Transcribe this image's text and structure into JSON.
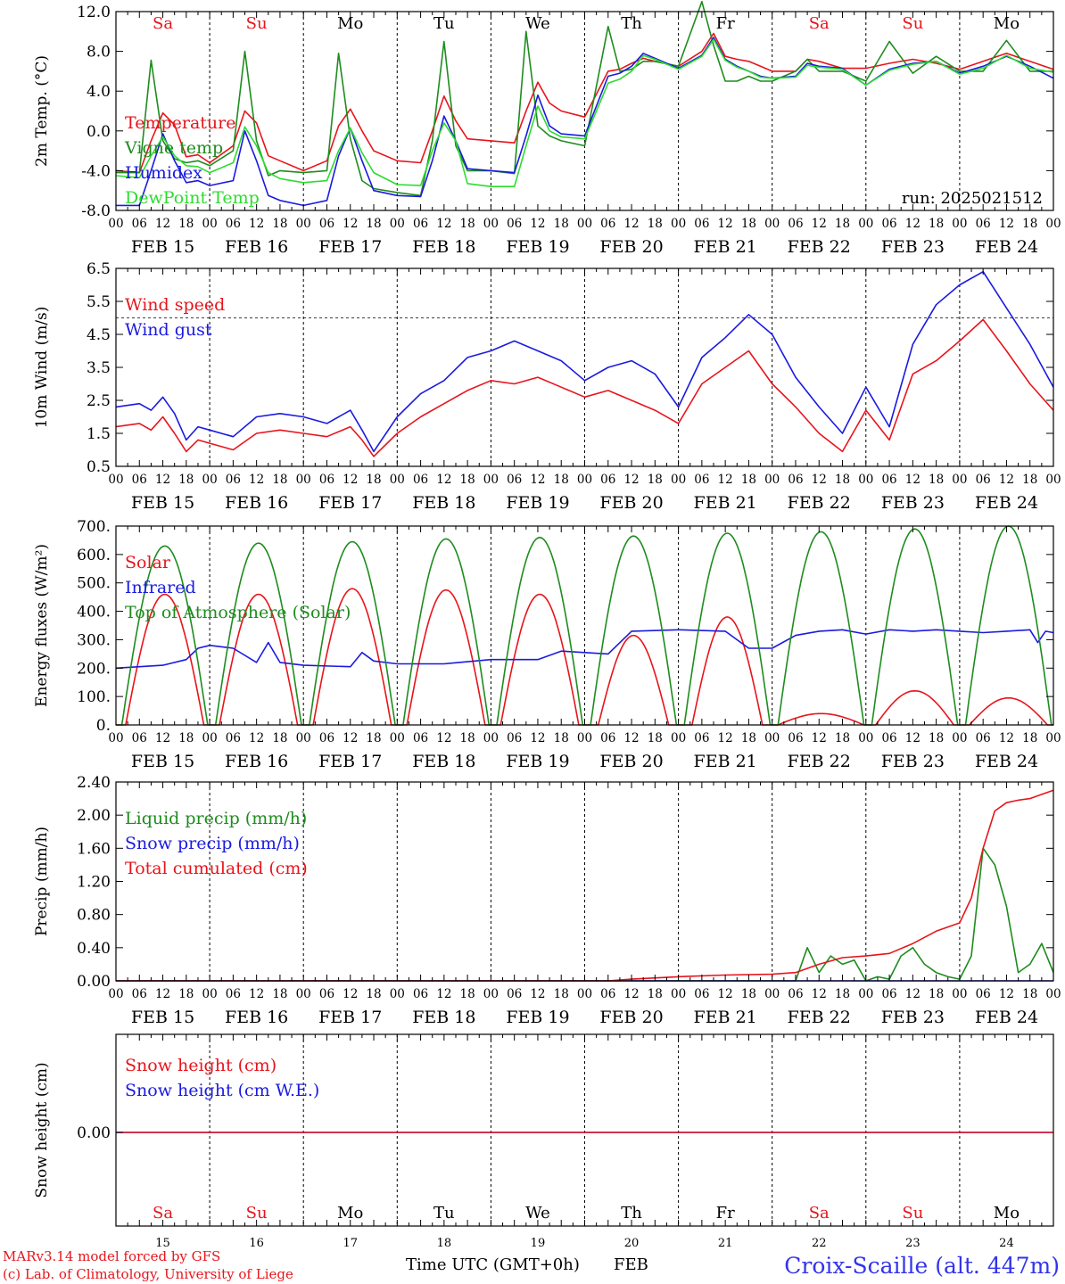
{
  "colors": {
    "red": "#e8141b",
    "darkgreen": "#1e8c1e",
    "blue": "#1a1ae0",
    "lightgreen": "#2edc2e",
    "black": "#000000",
    "siteblue": "#3333ee"
  },
  "time_axis": {
    "hour_ticks": [
      "00",
      "06",
      "12",
      "18"
    ],
    "days": [
      "15",
      "16",
      "17",
      "18",
      "19",
      "20",
      "21",
      "22",
      "23",
      "24"
    ],
    "month": "FEB",
    "day_labels": [
      "FEB 15",
      "FEB 16",
      "FEB 17",
      "FEB 18",
      "FEB 19",
      "FEB 20",
      "FEB 21",
      "FEB 22",
      "FEB 23",
      "FEB 24"
    ],
    "weekdays": [
      "Sa",
      "Su",
      "Mo",
      "Tu",
      "We",
      "Th",
      "Fr",
      "Sa",
      "Su",
      "Mo"
    ],
    "weekend_flags": [
      true,
      true,
      false,
      false,
      false,
      false,
      false,
      true,
      true,
      false
    ],
    "xlabel": "Time UTC (GMT+0h)"
  },
  "footer": {
    "model": "MARv3.14 model forced by GFS",
    "credit": "(c) Lab. of Climatology, University of Liege",
    "site": "Croix-Scaille (alt. 447m)"
  },
  "chart_data": [
    {
      "type": "line",
      "ylabel": "2m Temp. (°C)",
      "ylim": [
        -8,
        12
      ],
      "ytick_values": [
        -8,
        -4,
        0,
        4,
        8,
        12
      ],
      "yticks": [
        "-8.0",
        "-4.0",
        "0.0",
        "4.0",
        "8.0",
        "12.0"
      ],
      "annotation": "run: 2025021512",
      "x_hours": [
        0,
        6,
        9,
        12,
        15,
        18,
        21,
        24,
        30,
        33,
        36,
        39,
        42,
        48,
        54,
        57,
        60,
        63,
        66,
        72,
        78,
        81,
        84,
        87,
        90,
        96,
        102,
        105,
        108,
        111,
        114,
        120,
        126,
        129,
        132,
        135,
        138,
        144,
        150,
        153,
        156,
        159,
        162,
        165,
        168,
        174,
        177,
        180,
        186,
        192,
        198,
        204,
        210,
        216,
        222,
        228,
        234,
        240
      ],
      "series": [
        {
          "name": "Temperature",
          "color": "red",
          "values": [
            -4,
            -4.2,
            -1,
            1.8,
            0.6,
            -2.6,
            -2.4,
            -3.2,
            -1.5,
            2,
            0.8,
            -2.5,
            -3,
            -4,
            -3,
            0.5,
            2.2,
            0,
            -2,
            -3,
            -3.2,
            0,
            3.5,
            1,
            -0.8,
            -1,
            -1.2,
            2,
            4.9,
            2.8,
            2,
            1.4,
            6,
            6.2,
            6.8,
            7.3,
            7,
            6.5,
            8,
            9.8,
            7.5,
            7.2,
            7,
            6.5,
            6,
            6,
            7.2,
            7,
            6.3,
            6.3,
            6.8,
            7.2,
            6.8,
            6.2,
            7,
            7.8,
            7,
            6.2
          ]
        },
        {
          "name": "Vigne temp",
          "color": "darkgreen",
          "values": [
            -4.2,
            -4.2,
            7.1,
            -1,
            -2.8,
            -3.2,
            -3,
            -3.5,
            -2,
            8,
            -1,
            -4.5,
            -4,
            -4.2,
            -4,
            7.8,
            -0.8,
            -5,
            -5.8,
            -6.2,
            -6.5,
            -1,
            9,
            -1.5,
            -4,
            -4,
            -4.3,
            10,
            0.5,
            -0.5,
            -1,
            -1.5,
            10.5,
            6,
            6.2,
            7,
            7,
            6.5,
            13,
            8.6,
            5,
            5,
            5.5,
            5,
            5,
            6,
            7.2,
            6,
            6,
            5,
            9,
            5.8,
            7.5,
            6,
            6,
            9.1,
            6,
            6
          ]
        },
        {
          "name": "Humidex",
          "color": "blue",
          "values": [
            -7.5,
            -7.5,
            -4,
            -0.3,
            -3,
            -5.2,
            -5,
            -5.5,
            -5,
            0,
            -3,
            -6.5,
            -7,
            -7.5,
            -7,
            -2.5,
            0.3,
            -3,
            -6,
            -6.5,
            -6.6,
            -3,
            1.5,
            -1,
            -3.8,
            -4,
            -4.2,
            -0.5,
            3.6,
            0.5,
            -0.3,
            -0.5,
            5.5,
            5.8,
            6.5,
            7.8,
            7.3,
            6.3,
            7.6,
            9.4,
            7.2,
            6.5,
            6,
            5.5,
            5.3,
            5.5,
            6.8,
            6.5,
            6.3,
            4.6,
            6.2,
            6.8,
            7,
            5.8,
            6.5,
            7.5,
            6.5,
            5.3
          ]
        },
        {
          "name": "DewPoint Temp",
          "color": "lightgreen",
          "values": [
            -4.5,
            -4.7,
            -2.5,
            -0.6,
            -2.5,
            -3.5,
            -3.6,
            -4.2,
            -3.2,
            0.4,
            -1.5,
            -4.2,
            -4.8,
            -5.2,
            -5,
            -2,
            0.3,
            -2.2,
            -4.2,
            -5.4,
            -5.5,
            -2,
            0.8,
            -1,
            -5.3,
            -5.6,
            -5.6,
            -1.5,
            2.5,
            0,
            -0.6,
            -0.8,
            4.8,
            5.2,
            6,
            7.6,
            7.2,
            6.2,
            7.5,
            9.2,
            7.1,
            6.4,
            6,
            5.4,
            5.3,
            5.4,
            6.6,
            6.4,
            6.2,
            4.6,
            6.1,
            6.7,
            7,
            5.7,
            6.3,
            7.6,
            6.3,
            5.9
          ]
        }
      ]
    },
    {
      "type": "line",
      "ylabel": "10m Wind (m/s)",
      "ylim": [
        0.5,
        6.5
      ],
      "ytick_values": [
        0.5,
        1.5,
        2.5,
        3.5,
        4.5,
        5.5,
        6.5
      ],
      "yticks": [
        "0.5",
        "1.5",
        "2.5",
        "3.5",
        "4.5",
        "5.5",
        "6.5"
      ],
      "ref_line": 5,
      "x_hours": [
        0,
        6,
        9,
        12,
        15,
        18,
        21,
        24,
        30,
        36,
        42,
        48,
        54,
        60,
        63,
        66,
        72,
        78,
        84,
        90,
        96,
        102,
        108,
        114,
        120,
        126,
        132,
        138,
        144,
        150,
        156,
        162,
        168,
        174,
        180,
        186,
        192,
        198,
        204,
        210,
        216,
        222,
        228,
        234,
        240
      ],
      "series": [
        {
          "name": "Wind speed",
          "color": "red",
          "values": [
            1.7,
            1.8,
            1.6,
            2,
            1.5,
            0.95,
            1.3,
            1.2,
            1,
            1.5,
            1.6,
            1.5,
            1.4,
            1.7,
            1.3,
            0.8,
            1.5,
            2,
            2.4,
            2.8,
            3.1,
            3,
            3.2,
            2.9,
            2.6,
            2.8,
            2.5,
            2.2,
            1.8,
            3,
            3.5,
            4,
            3,
            2.3,
            1.5,
            0.95,
            2.2,
            1.3,
            3.3,
            3.7,
            4.3,
            4.95,
            4,
            3,
            2.2
          ]
        },
        {
          "name": "Wind gust",
          "color": "blue",
          "values": [
            2.3,
            2.4,
            2.2,
            2.6,
            2.1,
            1.3,
            1.7,
            1.6,
            1.4,
            2,
            2.1,
            2,
            1.8,
            2.2,
            1.6,
            0.95,
            2,
            2.7,
            3.1,
            3.8,
            4,
            4.3,
            4,
            3.7,
            3.1,
            3.5,
            3.7,
            3.3,
            2.3,
            3.8,
            4.4,
            5.1,
            4.5,
            3.2,
            2.3,
            1.5,
            2.9,
            1.7,
            4.2,
            5.4,
            6,
            6.4,
            5.3,
            4.2,
            2.9
          ]
        }
      ]
    },
    {
      "type": "line",
      "ylabel": "Energy fluxes (W/m²)",
      "ylim": [
        0,
        700
      ],
      "ytick_values": [
        0,
        100,
        200,
        300,
        400,
        500,
        600,
        700
      ],
      "yticks": [
        "0.",
        "100.",
        "200.",
        "300.",
        "400.",
        "500.",
        "600.",
        "700."
      ],
      "series": [
        {
          "name": "Solar",
          "color": "red",
          "peaks": [
            [
              12.5,
              460,
              10
            ],
            [
              36.5,
              460,
              10
            ],
            [
              60.5,
              480,
              10
            ],
            [
              84.5,
              475,
              10
            ],
            [
              108.5,
              460,
              10
            ],
            [
              132.5,
              315,
              9
            ],
            [
              156.5,
              380,
              9
            ],
            [
              180.5,
              40,
              11
            ],
            [
              204.5,
              120,
              10
            ],
            [
              228.5,
              95,
              10
            ]
          ]
        },
        {
          "name": "Infrared",
          "color": "blue",
          "x_hours": [
            0,
            12,
            18,
            21,
            24,
            30,
            36,
            39,
            42,
            48,
            60,
            63,
            66,
            72,
            84,
            96,
            108,
            114,
            120,
            126,
            132,
            144,
            156,
            162,
            168,
            174,
            180,
            186,
            192,
            198,
            204,
            210,
            216,
            222,
            228,
            234,
            236,
            238,
            240
          ],
          "values": [
            200,
            210,
            230,
            270,
            280,
            270,
            220,
            290,
            220,
            210,
            205,
            255,
            225,
            215,
            215,
            230,
            230,
            260,
            255,
            250,
            330,
            335,
            330,
            270,
            270,
            315,
            330,
            335,
            320,
            335,
            330,
            335,
            330,
            325,
            330,
            335,
            290,
            330,
            325
          ]
        },
        {
          "name": "Top of Atmosphere (Solar)",
          "color": "darkgreen",
          "peaks": [
            [
              12.5,
              630,
              11
            ],
            [
              36.5,
              640,
              11
            ],
            [
              60.5,
              645,
              11
            ],
            [
              84.5,
              655,
              11
            ],
            [
              108.5,
              660,
              11
            ],
            [
              132.5,
              665,
              11
            ],
            [
              156.5,
              675,
              11
            ],
            [
              180.5,
              680,
              11
            ],
            [
              204.5,
              690,
              11
            ],
            [
              228.5,
              700,
              11
            ]
          ]
        }
      ]
    },
    {
      "type": "line",
      "ylabel": "Precip (mm/h)",
      "ylim": [
        0,
        2.4
      ],
      "ytick_values": [
        0,
        0.4,
        0.8,
        1.2,
        1.6,
        2.0,
        2.4
      ],
      "yticks": [
        "0.00",
        "0.40",
        "0.80",
        "1.20",
        "1.60",
        "2.00",
        "2.40"
      ],
      "series": [
        {
          "name": "Liquid precip (mm/h)",
          "color": "darkgreen",
          "x_hours": [
            0,
            174,
            177,
            180,
            183,
            186,
            189,
            192,
            195,
            198,
            201,
            204,
            207,
            210,
            213,
            216,
            219,
            222,
            225,
            228,
            231,
            234,
            237,
            240
          ],
          "values": [
            0,
            0,
            0.4,
            0.1,
            0.3,
            0.2,
            0.25,
            0,
            0.05,
            0.02,
            0.3,
            0.4,
            0.2,
            0.1,
            0.05,
            0.02,
            0.3,
            1.6,
            1.4,
            0.9,
            0.1,
            0.2,
            0.45,
            0.1
          ]
        },
        {
          "name": "Snow precip (mm/h)",
          "color": "blue",
          "x_hours": [
            0,
            240
          ],
          "values": [
            0,
            0
          ]
        },
        {
          "name": "Total cumulated (cm)",
          "color": "red",
          "x_hours": [
            0,
            126,
            132,
            144,
            156,
            168,
            174,
            180,
            186,
            192,
            198,
            204,
            210,
            216,
            219,
            222,
            225,
            228,
            231,
            234,
            237,
            240
          ],
          "values": [
            0,
            0,
            0.02,
            0.05,
            0.07,
            0.08,
            0.1,
            0.2,
            0.28,
            0.3,
            0.33,
            0.45,
            0.6,
            0.7,
            1.0,
            1.6,
            2.05,
            2.15,
            2.18,
            2.2,
            2.25,
            2.3
          ]
        }
      ]
    },
    {
      "type": "line",
      "ylabel": "Snow height (cm)",
      "yticks": [
        "0.00"
      ],
      "series": [
        {
          "name": "Snow height (cm)",
          "color": "red"
        },
        {
          "name": "Snow height (cm W.E.)",
          "color": "blue"
        }
      ]
    }
  ]
}
